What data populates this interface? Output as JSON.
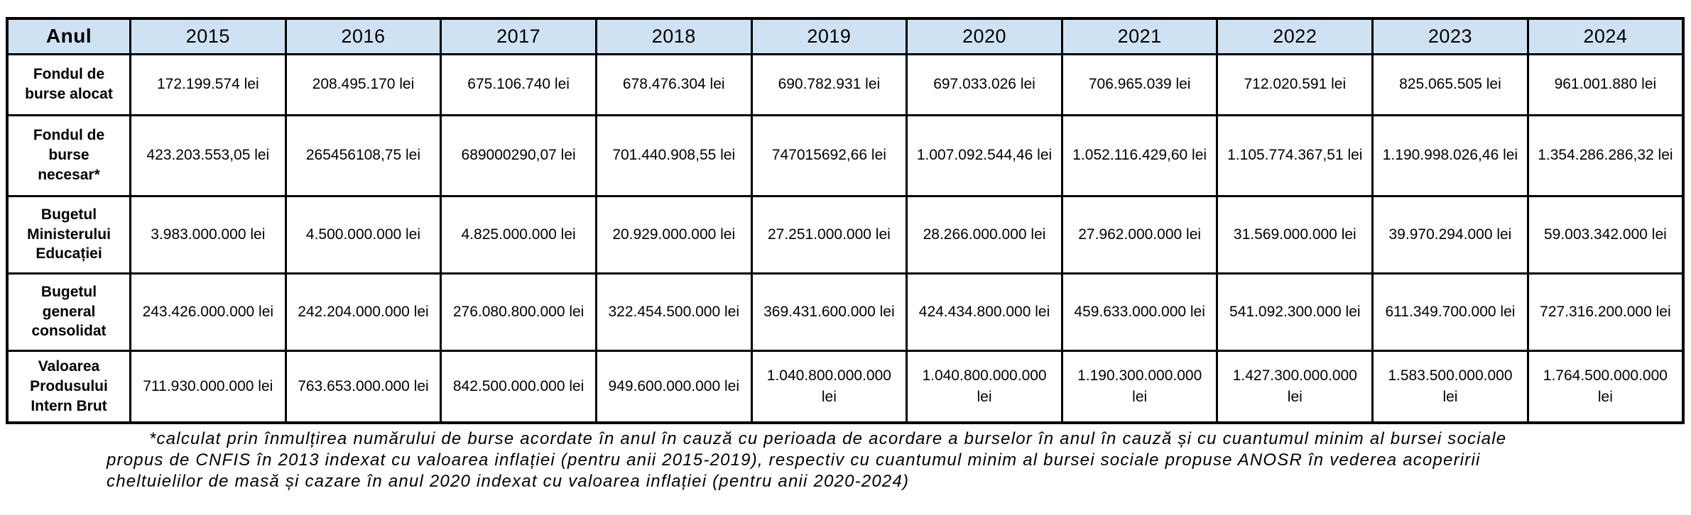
{
  "colors": {
    "header_bg": "#cfe2f3",
    "border": "#000000",
    "text": "#000000",
    "background": "#ffffff"
  },
  "table": {
    "corner_label": "Anul",
    "years": [
      "2015",
      "2016",
      "2017",
      "2018",
      "2019",
      "2020",
      "2021",
      "2022",
      "2023",
      "2024"
    ],
    "rows": [
      {
        "label": "Fondul de burse alocat",
        "values": [
          "172.199.574 lei",
          "208.495.170 lei",
          "675.106.740 lei",
          "678.476.304 lei",
          "690.782.931 lei",
          "697.033.026 lei",
          "706.965.039 lei",
          "712.020.591 lei",
          "825.065.505 lei",
          "961.001.880 lei"
        ]
      },
      {
        "label": "Fondul de burse necesar*",
        "values": [
          "423.203.553,05 lei",
          "265456108,75 lei",
          "689000290,07 lei",
          "701.440.908,55 lei",
          "747015692,66 lei",
          "1.007.092.544,46 lei",
          "1.052.116.429,60 lei",
          "1.105.774.367,51 lei",
          "1.190.998.026,46 lei",
          "1.354.286.286,32 lei"
        ]
      },
      {
        "label": "Bugetul Ministerului Educației",
        "values": [
          "3.983.000.000 lei",
          "4.500.000.000 lei",
          "4.825.000.000 lei",
          "20.929.000.000 lei",
          "27.251.000.000 lei",
          "28.266.000.000 lei",
          "27.962.000.000 lei",
          "31.569.000.000 lei",
          "39.970.294.000 lei",
          "59.003.342.000 lei"
        ]
      },
      {
        "label": "Bugetul general consolidat",
        "values": [
          "243.426.000.000 lei",
          "242.204.000.000 lei",
          "276.080.800.000 lei",
          "322.454.500.000 lei",
          "369.431.600.000 lei",
          "424.434.800.000 lei",
          "459.633.000.000 lei",
          "541.092.300.000 lei",
          "611.349.700.000 lei",
          "727.316.200.000 lei"
        ]
      },
      {
        "label": "Valoarea Produsului Intern Brut",
        "values": [
          "711.930.000.000 lei",
          "763.653.000.000 lei",
          "842.500.000.000 lei",
          "949.600.000.000 lei",
          "1.040.800.000.000 lei",
          "1.040.800.000.000 lei",
          "1.190.300.000.000 lei",
          "1.427.300.000.000 lei",
          "1.583.500.000.000 lei",
          "1.764.500.000.000 lei"
        ]
      }
    ]
  },
  "chart_data": {
    "type": "table",
    "columns": [
      "Anul",
      "2015",
      "2016",
      "2017",
      "2018",
      "2019",
      "2020",
      "2021",
      "2022",
      "2023",
      "2024"
    ],
    "rows": [
      [
        "Fondul de burse alocat",
        "172.199.574 lei",
        "208.495.170 lei",
        "675.106.740 lei",
        "678.476.304 lei",
        "690.782.931 lei",
        "697.033.026 lei",
        "706.965.039 lei",
        "712.020.591 lei",
        "825.065.505 lei",
        "961.001.880 lei"
      ],
      [
        "Fondul de burse necesar*",
        "423.203.553,05 lei",
        "265456108,75 lei",
        "689000290,07 lei",
        "701.440.908,55 lei",
        "747015692,66 lei",
        "1.007.092.544,46 lei",
        "1.052.116.429,60 lei",
        "1.105.774.367,51 lei",
        "1.190.998.026,46 lei",
        "1.354.286.286,32 lei"
      ],
      [
        "Bugetul Ministerului Educației",
        "3.983.000.000 lei",
        "4.500.000.000 lei",
        "4.825.000.000 lei",
        "20.929.000.000 lei",
        "27.251.000.000 lei",
        "28.266.000.000 lei",
        "27.962.000.000 lei",
        "31.569.000.000 lei",
        "39.970.294.000 lei",
        "59.003.342.000 lei"
      ],
      [
        "Bugetul general consolidat",
        "243.426.000.000 lei",
        "242.204.000.000 lei",
        "276.080.800.000 lei",
        "322.454.500.000 lei",
        "369.431.600.000 lei",
        "424.434.800.000 lei",
        "459.633.000.000 lei",
        "541.092.300.000 lei",
        "611.349.700.000 lei",
        "727.316.200.000 lei"
      ],
      [
        "Valoarea Produsului Intern Brut",
        "711.930.000.000 lei",
        "763.653.000.000 lei",
        "842.500.000.000 lei",
        "949.600.000.000 lei",
        "1.040.800.000.000 lei",
        "1.040.800.000.000 lei",
        "1.190.300.000.000 lei",
        "1.427.300.000.000 lei",
        "1.583.500.000.000 lei",
        "1.764.500.000.000 lei"
      ]
    ]
  },
  "footnote": "*calculat prin înmulțirea numărului de burse acordate în anul în cauză cu perioada de acordare a burselor în anul în cauză și cu cuantumul minim al bursei sociale propus de CNFIS în 2013 indexat cu valoarea inflației (pentru anii 2015-2019), respectiv cu cuantumul minim al bursei sociale propuse ANOSR în vederea acoperirii cheltuielilor de masă și cazare în anul 2020 indexat cu valoarea inflației (pentru anii 2020-2024)"
}
